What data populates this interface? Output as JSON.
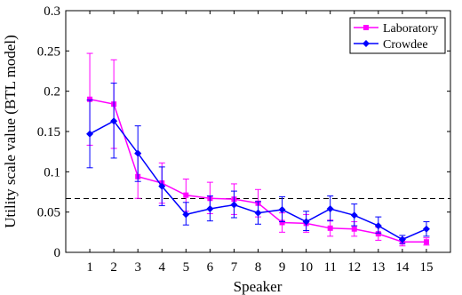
{
  "chart_data": {
    "type": "line",
    "title": "",
    "xlabel": "Speaker",
    "ylabel": "Utility scale value (BTL model)",
    "xlim": [
      0,
      16
    ],
    "ylim": [
      0,
      0.3
    ],
    "x_ticks": [
      1,
      2,
      3,
      4,
      5,
      6,
      7,
      8,
      9,
      10,
      11,
      12,
      13,
      14,
      15
    ],
    "y_ticks": [
      0,
      0.05,
      0.1,
      0.15,
      0.2,
      0.25,
      0.3
    ],
    "y_tick_labels": [
      "0",
      "0.05",
      "0.1",
      "0.15",
      "0.2",
      "0.25",
      "0.3"
    ],
    "grid": false,
    "legend_position": "top-right",
    "reference_line": {
      "y": 0.0667,
      "style": "dashed",
      "color": "#000000"
    },
    "series": [
      {
        "name": "Laboratory",
        "color": "#ff00ff",
        "marker": "square",
        "x": [
          1,
          2,
          3,
          4,
          5,
          6,
          7,
          8,
          9,
          10,
          11,
          12,
          13,
          14,
          15
        ],
        "y": [
          0.19,
          0.184,
          0.094,
          0.086,
          0.071,
          0.067,
          0.066,
          0.061,
          0.037,
          0.036,
          0.03,
          0.029,
          0.023,
          0.013,
          0.013
        ],
        "error_low": [
          0.133,
          0.129,
          0.067,
          0.061,
          0.051,
          0.048,
          0.047,
          0.044,
          0.025,
          0.025,
          0.02,
          0.02,
          0.015,
          0.008,
          0.009
        ],
        "error_high": [
          0.247,
          0.239,
          0.122,
          0.111,
          0.091,
          0.087,
          0.085,
          0.078,
          0.049,
          0.047,
          0.04,
          0.038,
          0.031,
          0.018,
          0.018
        ]
      },
      {
        "name": "Crowdee",
        "color": "#0000ff",
        "marker": "diamond",
        "x": [
          1,
          2,
          3,
          4,
          5,
          6,
          7,
          8,
          9,
          10,
          11,
          12,
          13,
          14,
          15
        ],
        "y": [
          0.147,
          0.163,
          0.123,
          0.082,
          0.047,
          0.054,
          0.059,
          0.049,
          0.053,
          0.038,
          0.054,
          0.046,
          0.033,
          0.016,
          0.029
        ],
        "error_low": [
          0.105,
          0.117,
          0.088,
          0.058,
          0.034,
          0.039,
          0.043,
          0.035,
          0.038,
          0.027,
          0.039,
          0.033,
          0.024,
          0.011,
          0.02
        ],
        "error_high": [
          0.189,
          0.21,
          0.157,
          0.106,
          0.062,
          0.07,
          0.076,
          0.063,
          0.069,
          0.051,
          0.07,
          0.06,
          0.044,
          0.021,
          0.038
        ]
      }
    ]
  }
}
